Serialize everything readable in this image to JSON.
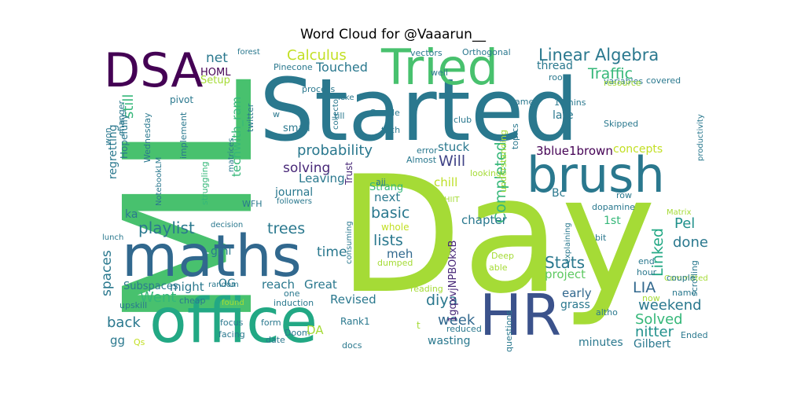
{
  "title": "Word Cloud for @Vaaarun__",
  "words": [
    {
      "text": "ML",
      "color": "#48c16e"
    },
    {
      "text": "Started",
      "color": "#2a788e"
    },
    {
      "text": "Day",
      "color": "#a5db36"
    },
    {
      "text": "office",
      "color": "#22a884"
    },
    {
      "text": "maths",
      "color": "#31688e"
    },
    {
      "text": "brush",
      "color": "#2a788e"
    },
    {
      "text": "HR",
      "color": "#3b528b"
    },
    {
      "text": "DSA",
      "color": "#440154"
    },
    {
      "text": "Tried",
      "color": "#48c16e"
    },
    {
      "text": "Linear Algebra",
      "color": "#2a788e"
    },
    {
      "text": "Calculus",
      "color": "#c2df23"
    },
    {
      "text": "probability",
      "color": "#2a788e"
    },
    {
      "text": "solving",
      "color": "#482878"
    },
    {
      "text": "playlist",
      "color": "#2a788e"
    },
    {
      "text": "trees",
      "color": "#2a788e"
    },
    {
      "text": "basic",
      "color": "#2a788e"
    },
    {
      "text": "lists",
      "color": "#2a788e"
    },
    {
      "text": "Completed",
      "color": "#35b779"
    },
    {
      "text": "Linked",
      "color": "#22a884"
    },
    {
      "text": "Stats",
      "color": "#2a788e"
    },
    {
      "text": "done",
      "color": "#2a788e"
    },
    {
      "text": "Pel",
      "color": "#21918c"
    },
    {
      "text": "weekend",
      "color": "#2a788e"
    },
    {
      "text": "Solved",
      "color": "#35b779"
    },
    {
      "text": "nitter",
      "color": "#21918c"
    },
    {
      "text": "diya",
      "color": "#2a788e"
    },
    {
      "text": "week",
      "color": "#31688e"
    },
    {
      "text": "Went",
      "color": "#35b779"
    },
    {
      "text": "spaces",
      "color": "#2a788e"
    },
    {
      "text": "back",
      "color": "#2a788e"
    },
    {
      "text": "still",
      "color": "#35b779"
    },
    {
      "text": "Traffic",
      "color": "#35b779"
    },
    {
      "text": "net",
      "color": "#2a788e"
    },
    {
      "text": "Touched",
      "color": "#2a788e"
    },
    {
      "text": "Will",
      "color": "#414487"
    },
    {
      "text": "time",
      "color": "#2a788e"
    },
    {
      "text": "LIA",
      "color": "#31688e"
    },
    {
      "text": "3blue1brown",
      "color": "#440154"
    },
    {
      "text": "journal",
      "color": "#2a788e"
    },
    {
      "text": "Leaving",
      "color": "#2a788e"
    },
    {
      "text": "stuck",
      "color": "#2a788e"
    },
    {
      "text": "chill",
      "color": "#bddf26"
    },
    {
      "text": "next",
      "color": "#2a788e"
    },
    {
      "text": "meh",
      "color": "#31688e"
    },
    {
      "text": "chapter",
      "color": "#2a788e"
    },
    {
      "text": "1gqxvjNPBOkxB",
      "color": "#482878"
    },
    {
      "text": "project",
      "color": "#5ec962"
    },
    {
      "text": "early",
      "color": "#31688e"
    },
    {
      "text": "Great",
      "color": "#2a788e"
    },
    {
      "text": "reach",
      "color": "#2a788e"
    },
    {
      "text": "Revised",
      "color": "#2a788e"
    },
    {
      "text": "grass",
      "color": "#2a788e"
    },
    {
      "text": "minutes",
      "color": "#2a788e"
    },
    {
      "text": "Gilbert",
      "color": "#2a788e"
    },
    {
      "text": "wasting",
      "color": "#2a788e"
    },
    {
      "text": "concepts",
      "color": "#c2df23"
    },
    {
      "text": "late",
      "color": "#2a788e"
    },
    {
      "text": "thread",
      "color": "#2a788e"
    },
    {
      "text": "small",
      "color": "#2a788e"
    },
    {
      "text": "Strang",
      "color": "#35b779"
    },
    {
      "text": "might",
      "color": "#2a788e"
    },
    {
      "text": "OG",
      "color": "#2a788e"
    },
    {
      "text": "ka",
      "color": "#2a788e"
    },
    {
      "text": "gmi",
      "color": "#2a788e"
    },
    {
      "text": "HOML",
      "color": "#440154"
    },
    {
      "text": "Setup",
      "color": "#a5db36"
    },
    {
      "text": "gg",
      "color": "#2a788e"
    },
    {
      "text": "1st",
      "color": "#35b779"
    },
    {
      "text": "Bc",
      "color": "#2a788e"
    },
    {
      "text": "whole",
      "color": "#c2df23"
    },
    {
      "text": "techwith_ram",
      "color": "#35b779"
    },
    {
      "text": "Subspaces",
      "color": "#2a788e"
    },
    {
      "text": "pivot",
      "color": "#2a788e"
    },
    {
      "text": "regretting",
      "color": "#2a788e"
    },
    {
      "text": "Hopefully",
      "color": "#2a788e"
    },
    {
      "text": "Wednesday",
      "color": "#2a788e"
    },
    {
      "text": "changer",
      "color": "#2a788e"
    },
    {
      "text": "won",
      "color": "#2a788e"
    },
    {
      "text": "NotebookLM",
      "color": "#2a788e"
    },
    {
      "text": "implement",
      "color": "#2a788e"
    },
    {
      "text": "struggling",
      "color": "#35b779"
    },
    {
      "text": "matrices",
      "color": "#2a788e"
    },
    {
      "text": "twitter",
      "color": "#2a788e"
    },
    {
      "text": "WFH",
      "color": "#2a788e"
    },
    {
      "text": "followers",
      "color": "#2a788e"
    },
    {
      "text": "upskill",
      "color": "#2a788e"
    },
    {
      "text": "cheap",
      "color": "#2a788e"
    },
    {
      "text": "random",
      "color": "#2a788e"
    },
    {
      "text": "lunch",
      "color": "#2a788e"
    },
    {
      "text": "decision",
      "color": "#2a788e"
    },
    {
      "text": "found",
      "color": "#a5db36"
    },
    {
      "text": "focus",
      "color": "#2a788e"
    },
    {
      "text": "facing",
      "color": "#2a788e"
    },
    {
      "text": "induction",
      "color": "#2a788e"
    },
    {
      "text": "form",
      "color": "#2a788e"
    },
    {
      "text": "Doom",
      "color": "#2a788e"
    },
    {
      "text": "date",
      "color": "#2a788e"
    },
    {
      "text": "DA",
      "color": "#a5db36"
    },
    {
      "text": "Rank1",
      "color": "#2a788e"
    },
    {
      "text": "docs",
      "color": "#2a788e"
    },
    {
      "text": "reduced",
      "color": "#2a788e"
    },
    {
      "text": "Qs",
      "color": "#c2df23"
    },
    {
      "text": "questions",
      "color": "#2a788e"
    },
    {
      "text": "reading",
      "color": "#a5db36"
    },
    {
      "text": "dumped",
      "color": "#a5db36"
    },
    {
      "text": "consuming",
      "color": "#2a788e"
    },
    {
      "text": "Deep",
      "color": "#a5db36"
    },
    {
      "text": "able",
      "color": "#a5db36"
    },
    {
      "text": "HIIT",
      "color": "#a5db36"
    },
    {
      "text": "ajj",
      "color": "#2a788e"
    },
    {
      "text": "Trust",
      "color": "#482878"
    },
    {
      "text": "Almost",
      "color": "#2a788e"
    },
    {
      "text": "error",
      "color": "#2a788e"
    },
    {
      "text": "looking",
      "color": "#a5db36"
    },
    {
      "text": "understanding",
      "color": "#a5db36"
    },
    {
      "text": "topics",
      "color": "#2a788e"
    },
    {
      "text": "tech",
      "color": "#2a788e"
    },
    {
      "text": "Google",
      "color": "#2a788e"
    },
    {
      "text": "collector",
      "color": "#2a788e"
    },
    {
      "text": "club",
      "color": "#2a788e"
    },
    {
      "text": "process",
      "color": "#2a788e"
    },
    {
      "text": "till",
      "color": "#2a788e"
    },
    {
      "text": "leke",
      "color": "#2a788e"
    },
    {
      "text": "Pinecone",
      "color": "#2a788e"
    },
    {
      "text": "forest",
      "color": "#2a788e"
    },
    {
      "text": "vectors",
      "color": "#2a788e"
    },
    {
      "text": "Orthogonal",
      "color": "#2a788e"
    },
    {
      "text": "well",
      "color": "#2a788e"
    },
    {
      "text": "game",
      "color": "#2a788e"
    },
    {
      "text": "room",
      "color": "#2a788e"
    },
    {
      "text": "variables",
      "color": "#2a788e"
    },
    {
      "text": "covered",
      "color": "#2a788e"
    },
    {
      "text": "resource",
      "color": "#a5db36"
    },
    {
      "text": "10mins",
      "color": "#2a788e"
    },
    {
      "text": "productivity",
      "color": "#2a788e"
    },
    {
      "text": "Skipped",
      "color": "#2a788e"
    },
    {
      "text": "dopamine",
      "color": "#2a788e"
    },
    {
      "text": "row",
      "color": "#2a788e"
    },
    {
      "text": "Matrix",
      "color": "#a5db36"
    },
    {
      "text": "explaining",
      "color": "#2a788e"
    },
    {
      "text": "bit",
      "color": "#2a788e"
    },
    {
      "text": "end",
      "color": "#2a788e"
    },
    {
      "text": "hour",
      "color": "#2a788e"
    },
    {
      "text": "scrolling",
      "color": "#2a788e"
    },
    {
      "text": "Committed",
      "color": "#a5db36"
    },
    {
      "text": "couple",
      "color": "#2a788e"
    },
    {
      "text": "name",
      "color": "#2a788e"
    },
    {
      "text": "now",
      "color": "#a5db36"
    },
    {
      "text": "altho",
      "color": "#2a788e"
    },
    {
      "text": "Ended",
      "color": "#2a788e"
    },
    {
      "text": "one",
      "color": "#2a788e"
    },
    {
      "text": "w",
      "color": "#2a788e"
    },
    {
      "text": "t",
      "color": "#a5db36"
    }
  ]
}
